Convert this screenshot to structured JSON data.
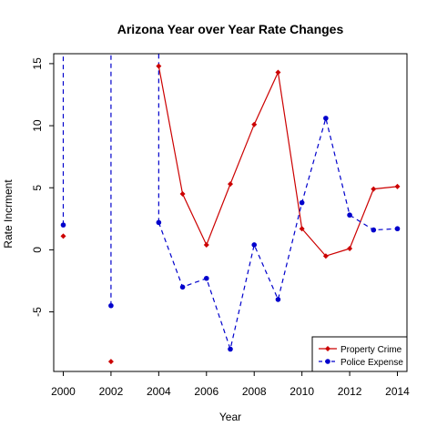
{
  "chart_data": {
    "type": "line",
    "title": "Arizona Year over Year Rate Changes",
    "xlabel": "Year",
    "ylabel": "Rate Incrment",
    "xlim": [
      1999.6,
      2014.4
    ],
    "ylim": [
      -9.8,
      15.8
    ],
    "x_ticks": [
      2000,
      2002,
      2004,
      2006,
      2008,
      2010,
      2012,
      2014
    ],
    "x_tick_labels": [
      "2000",
      "2002",
      "2004",
      "2006",
      "2008",
      "2010",
      "2012",
      "2014"
    ],
    "y_ticks": [
      -5,
      0,
      5,
      10,
      15
    ],
    "y_tick_labels": [
      "-5",
      "0",
      "5",
      "10",
      "15"
    ],
    "grid": false,
    "legend_position": "bottom-right",
    "series": [
      {
        "name": "Property Crime",
        "color": "#CC0000",
        "line_style": "solid",
        "marker": "diamond",
        "x": [
          2000,
          2002,
          2004,
          2005,
          2006,
          2007,
          2008,
          2009,
          2010,
          2011,
          2012,
          2013,
          2014
        ],
        "y": [
          1.1,
          -9.0,
          14.8,
          4.5,
          0.4,
          5.3,
          10.1,
          14.3,
          1.7,
          -0.5,
          0.1,
          4.9,
          5.1
        ],
        "segments": [
          [
            2,
            3,
            4,
            5,
            6,
            7,
            8,
            9,
            10,
            11,
            12
          ]
        ]
      },
      {
        "name": "Police Expense",
        "color": "#0000CC",
        "line_style": "dashed",
        "marker": "circle",
        "x": [
          2000,
          2002,
          2004,
          2005,
          2006,
          2007,
          2008,
          2009,
          2010,
          2011,
          2012,
          2013,
          2014
        ],
        "y": [
          2.0,
          -4.5,
          2.2,
          -3.0,
          -2.3,
          -8.0,
          0.4,
          -4.0,
          3.8,
          10.6,
          2.8,
          1.6,
          1.7
        ],
        "segments": [
          [
            2,
            3,
            4,
            5,
            6,
            7,
            8,
            9,
            10,
            11,
            12
          ]
        ],
        "offchart_lines": [
          {
            "from_index": 0,
            "to_x": 2000,
            "direction": "up"
          },
          {
            "from_index": 1,
            "to_x": 2002,
            "direction": "up"
          },
          {
            "from_index": 2,
            "to_x": 2004,
            "direction": "up"
          }
        ]
      }
    ]
  }
}
